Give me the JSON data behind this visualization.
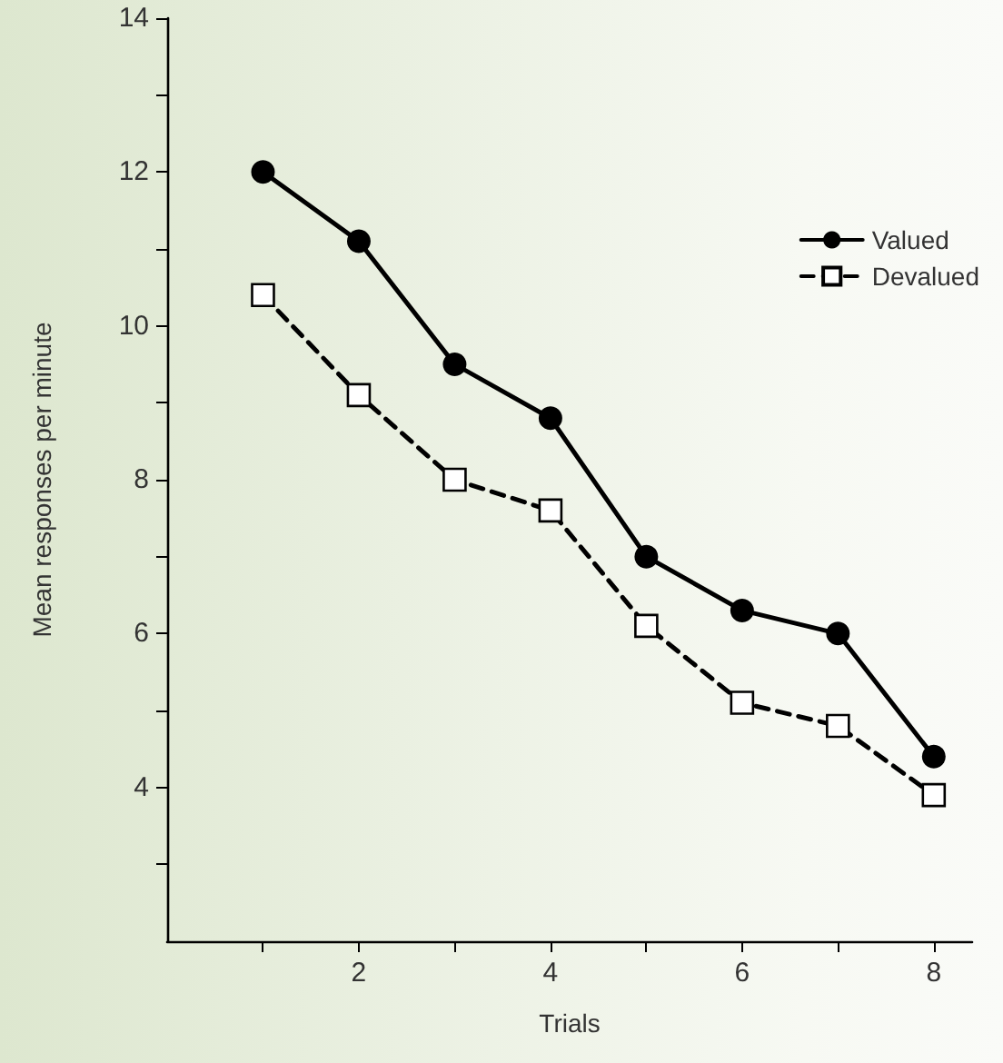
{
  "chart_data": {
    "type": "line",
    "xlabel": "Trials",
    "ylabel": "Mean responses per minute",
    "x": [
      1,
      2,
      3,
      4,
      5,
      6,
      7,
      8
    ],
    "series": [
      {
        "name": "Valued",
        "color": "#000000",
        "marker": "circle",
        "line_style": "solid",
        "values": [
          12.0,
          11.1,
          9.5,
          8.8,
          7.0,
          6.3,
          6.0,
          4.4
        ]
      },
      {
        "name": "Devalued",
        "color": "#000000",
        "marker": "square",
        "line_style": "dashed",
        "values": [
          10.4,
          9.1,
          8.0,
          7.6,
          6.1,
          5.1,
          4.8,
          3.9
        ]
      }
    ],
    "xlim": [
      0,
      8.4
    ],
    "xticks": [
      {
        "value": 1,
        "label": null
      },
      2,
      {
        "value": 3,
        "label": null
      },
      4,
      {
        "value": 5,
        "label": null
      },
      6,
      {
        "value": 7,
        "label": null
      },
      8
    ],
    "ylim": [
      2,
      14
    ],
    "yticks": [
      {
        "value": 3,
        "label": null
      },
      4,
      {
        "value": 5,
        "label": null
      },
      6,
      {
        "value": 7,
        "label": null
      },
      8,
      {
        "value": 9,
        "label": null
      },
      10,
      {
        "value": 11,
        "label": null
      },
      12,
      {
        "value": 13,
        "label": null
      },
      14
    ],
    "grid": false,
    "legend": "top right"
  }
}
